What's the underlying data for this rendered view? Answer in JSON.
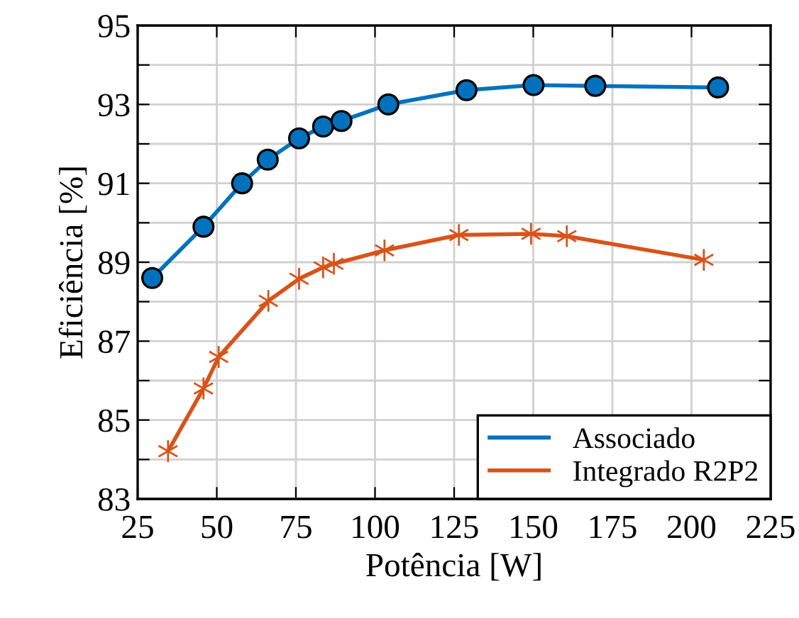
{
  "chart_data": {
    "type": "line",
    "xlabel": "Potência [W]",
    "ylabel": "Eficiência [%]",
    "xlim": [
      25,
      225
    ],
    "xticks": [
      25,
      50,
      75,
      100,
      125,
      150,
      175,
      200,
      225
    ],
    "ylim": [
      83,
      95
    ],
    "yticks": [
      83,
      {
        "value": 84,
        "label": null
      },
      85,
      {
        "value": 86,
        "label": null
      },
      87,
      {
        "value": 88,
        "label": null
      },
      89,
      {
        "value": 90,
        "label": null
      },
      91,
      {
        "value": 92,
        "label": null
      },
      93,
      {
        "value": 94,
        "label": null
      },
      95
    ],
    "grid": true,
    "legend": "bottom right",
    "line_style": "solid",
    "series": [
      {
        "name": "Associado",
        "color": "#0072bd",
        "marker": "circle",
        "x": [
          29.6,
          45.8,
          58.0,
          66.1,
          76.0,
          83.6,
          89.4,
          104.2,
          128.9,
          150.1,
          169.6,
          208.4
        ],
        "values": [
          88.6,
          89.9,
          91.0,
          91.6,
          92.14,
          92.44,
          92.58,
          93.0,
          93.36,
          93.49,
          93.47,
          93.43
        ]
      },
      {
        "name": "Integrado R2P2",
        "color": "#d95319",
        "marker": "cross",
        "x": [
          34.6,
          45.8,
          50.6,
          66.3,
          76.0,
          83.6,
          87.0,
          103.0,
          126.5,
          149.3,
          160.6,
          203.9
        ],
        "values": [
          84.21,
          85.8,
          86.6,
          88.02,
          88.58,
          88.87,
          88.96,
          89.3,
          89.69,
          89.72,
          89.66,
          89.06
        ]
      }
    ]
  }
}
